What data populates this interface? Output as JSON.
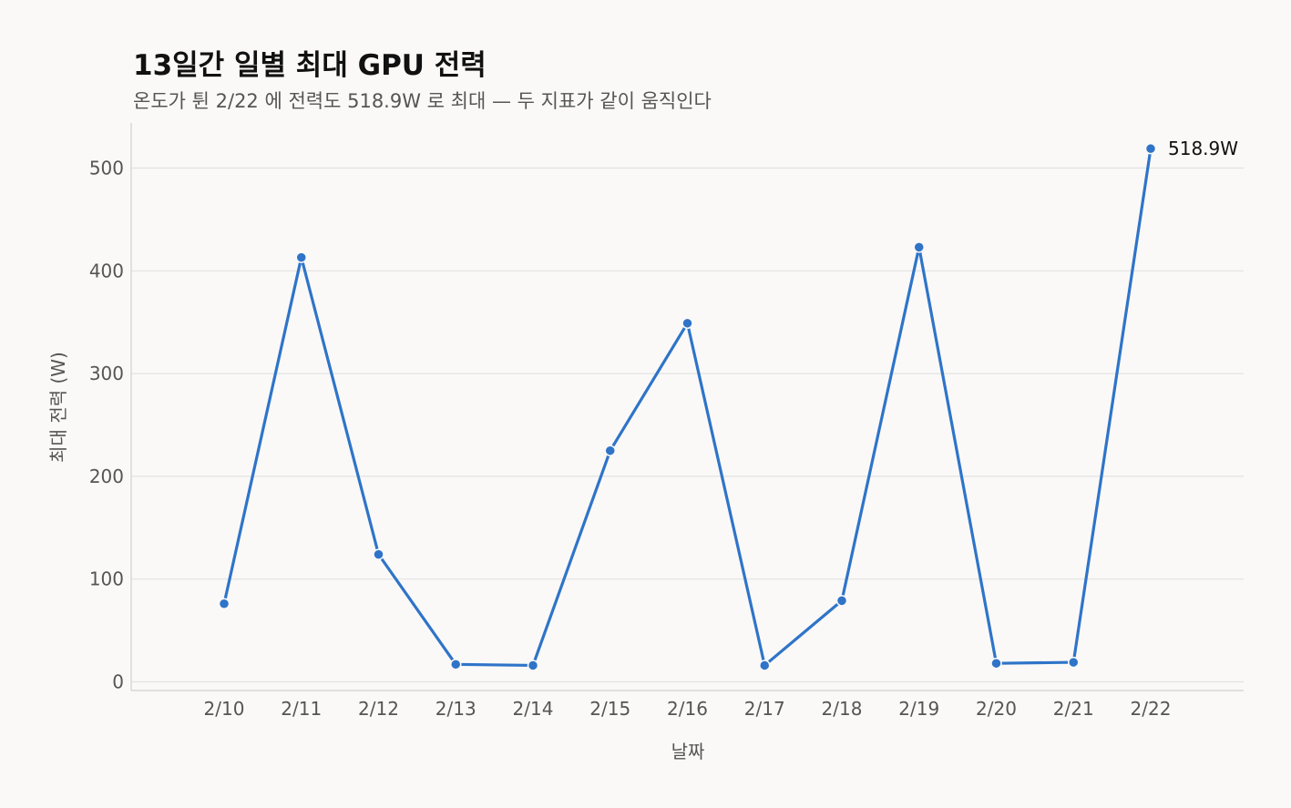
{
  "title": "13일간 일별 최대 GPU 전력",
  "subtitle": "온도가 튄 2/22 에 전력도 518.9W 로 최대 — 두 지표가 같이 움직인다",
  "colors": {
    "line": "#2f74c8",
    "grid": "#e2e2e2",
    "axis": "#d0d0d0",
    "background": "#faf9f8"
  },
  "chart_data": {
    "type": "line",
    "xlabel": "날짜",
    "ylabel": "최대 전력 (W)",
    "categories": [
      "2/10",
      "2/11",
      "2/12",
      "2/13",
      "2/14",
      "2/15",
      "2/16",
      "2/17",
      "2/18",
      "2/19",
      "2/20",
      "2/21",
      "2/22"
    ],
    "series": [
      {
        "values": [
          76,
          413,
          124,
          17,
          16,
          225,
          349,
          16,
          79,
          423,
          18,
          19,
          518.9
        ]
      }
    ],
    "yticks": [
      0,
      100,
      200,
      300,
      400,
      500
    ],
    "ylim": [
      -10,
      545
    ],
    "grid": "horizontal",
    "annotation": {
      "category": "2/22",
      "label": "518.9W"
    }
  }
}
